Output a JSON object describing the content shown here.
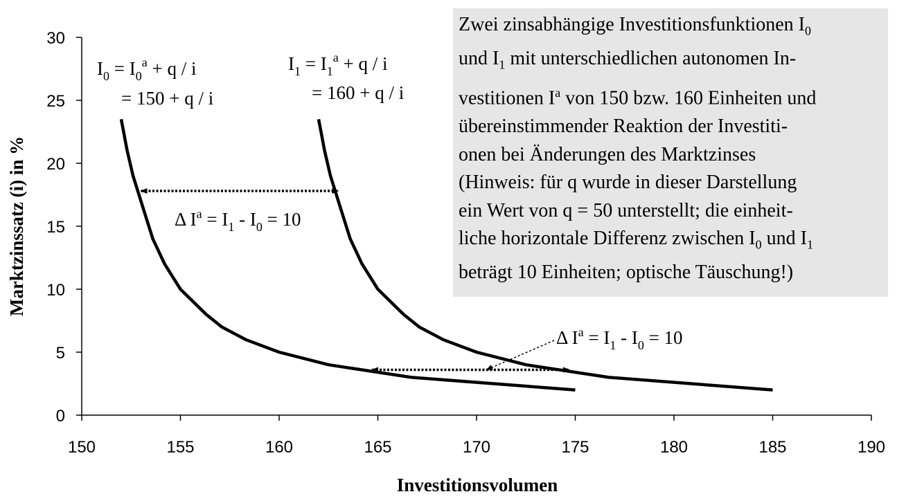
{
  "chart_data": {
    "type": "line",
    "xlabel": "Investitionsvolumen",
    "ylabel": "Marktzinssatz (i) in %",
    "xlim": [
      150,
      190
    ],
    "ylim": [
      0,
      30
    ],
    "xticks": [
      150,
      155,
      160,
      165,
      170,
      175,
      180,
      185,
      190
    ],
    "yticks": [
      0,
      5,
      10,
      15,
      20,
      25,
      30
    ],
    "grid": false,
    "line_color": "#000000",
    "series": [
      {
        "label_lines": [
          "I0 = I0a + q / i",
          "= 150 + q / i"
        ],
        "x": [
          152.0,
          152.3,
          152.6,
          153.1,
          153.6,
          154.2,
          155.0,
          156.3,
          157.1,
          158.3,
          160.0,
          162.5,
          166.7,
          175.0
        ],
        "y": [
          23.5,
          21.0,
          19.0,
          16.5,
          14.0,
          12.0,
          10.0,
          8.0,
          7.0,
          6.0,
          5.0,
          4.0,
          3.0,
          2.0
        ]
      },
      {
        "label_lines": [
          "I1 = I1a + q / i",
          "= 160 + q / i"
        ],
        "x": [
          162.0,
          162.3,
          162.6,
          163.1,
          163.6,
          164.2,
          165.0,
          166.3,
          167.1,
          168.3,
          170.0,
          172.5,
          176.7,
          185.0
        ],
        "y": [
          23.5,
          21.0,
          19.0,
          16.5,
          14.0,
          12.0,
          10.0,
          8.0,
          7.0,
          6.0,
          5.0,
          4.0,
          3.0,
          2.0
        ]
      }
    ],
    "annotations": [
      {
        "text": "Δ Ia = I1 - I0 = 10",
        "arrow_from": [
          153.0,
          17.8
        ],
        "arrow_to": [
          163.0,
          17.8
        ]
      },
      {
        "text": "Δ Ia = I1 - I0 = 10",
        "arrow_from": [
          164.7,
          3.6
        ],
        "arrow_to": [
          174.7,
          3.6
        ],
        "pointer_to": [
          170.5,
          3.6
        ]
      }
    ]
  },
  "note": {
    "text": "Zwei zinsabhängige Investitionsfunktionen I0 und I1 mit unterschiedlichen autonomen Investitionen Ia von 150 bzw. 160 Einheiten und übereinstimmender Reaktion der Investitionen bei Änderungen des Marktzinses (Hinweis: für q wurde in dieser Darstellung ein Wert von q = 50 unterstellt; die einheitliche horizontale Differenz zwischen I0 und I1 beträgt 10 Einheiten; optische Täuschung!)",
    "background": "#e6e6e6"
  }
}
